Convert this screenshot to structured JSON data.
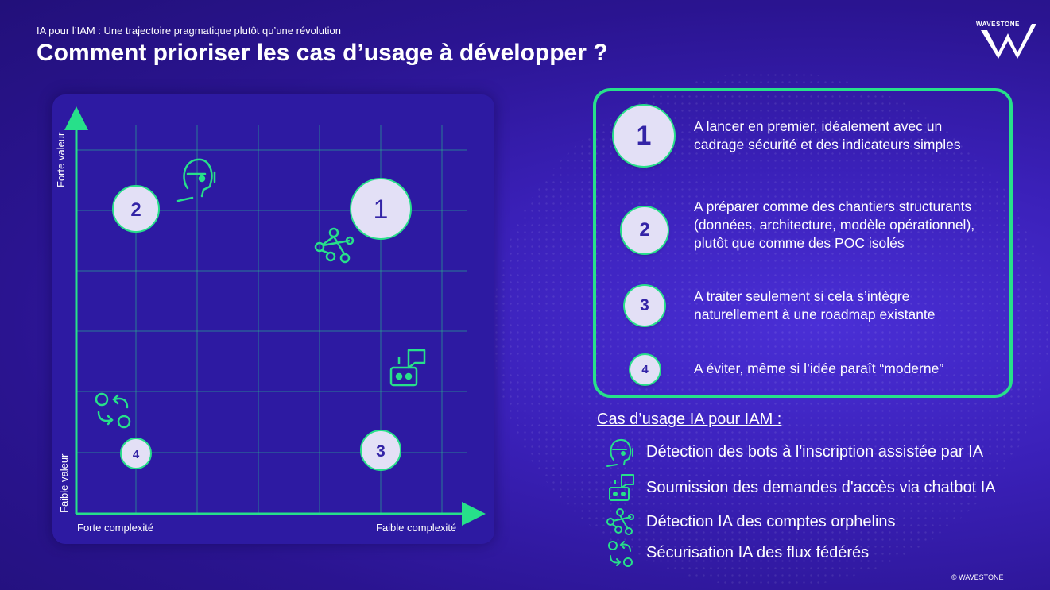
{
  "header": {
    "subtitle": "IA pour l’IAM : Une trajectoire pragmatique plutôt qu’une révolution",
    "title": "Comment prioriser les cas d’usage à développer ?",
    "logo_text": "WAVESTONE"
  },
  "matrix": {
    "y_axis_top_label": "Forte valeur",
    "y_axis_bottom_label": "Faible valeur",
    "x_axis_left_label": "Forte complexité",
    "x_axis_right_label": "Faible complexité",
    "points": [
      {
        "label": "1",
        "size": "large"
      },
      {
        "label": "2",
        "size": "medium"
      },
      {
        "label": "3",
        "size": "medium"
      },
      {
        "label": "4",
        "size": "small"
      }
    ],
    "icons": [
      "bot-face-icon",
      "network-icon",
      "chatbot-icon",
      "sync-flow-icon"
    ]
  },
  "legend": {
    "items": [
      {
        "number": "1",
        "text": "A lancer en premier, idéalement avec un cadrage sécurité et des indicateurs simples"
      },
      {
        "number": "2",
        "text": "A préparer comme des chantiers structurants (données, architecture, modèle opérationnel), plutôt que comme des POC isolés"
      },
      {
        "number": "3",
        "text": "A traiter seulement si cela s’intègre naturellement à une roadmap existante"
      },
      {
        "number": "4",
        "text": "A éviter, même si l’idée paraît “moderne”"
      }
    ]
  },
  "use_cases": {
    "title": "Cas d’usage IA pour IAM :",
    "items": [
      {
        "icon": "bot-face-icon",
        "label": "Détection des bots à l'inscription assistée par IA"
      },
      {
        "icon": "chatbot-icon",
        "label": "Soumission des demandes d'accès via chatbot IA"
      },
      {
        "icon": "network-icon",
        "label": "Détection IA des comptes orphelins"
      },
      {
        "icon": "sync-flow-icon",
        "label": "Sécurisation IA des flux fédérés"
      }
    ]
  },
  "colors": {
    "accent": "#27e08a",
    "background": "#3a20b8",
    "circle": "#e3e0f6",
    "circle_text": "#3324a6"
  },
  "footer": {
    "copyright": "© WAVESTONE"
  }
}
